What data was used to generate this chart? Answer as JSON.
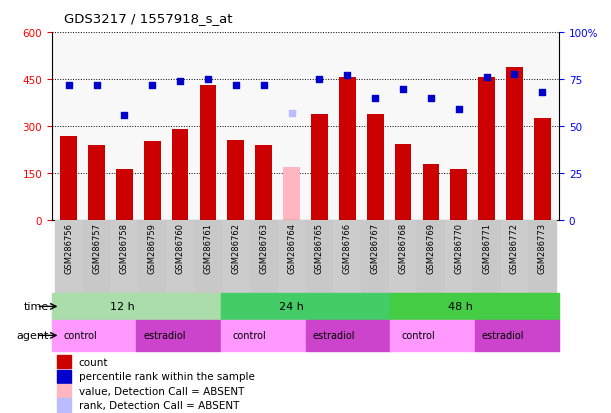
{
  "title": "GDS3217 / 1557918_s_at",
  "samples": [
    "GSM286756",
    "GSM286757",
    "GSM286758",
    "GSM286759",
    "GSM286760",
    "GSM286761",
    "GSM286762",
    "GSM286763",
    "GSM286764",
    "GSM286765",
    "GSM286766",
    "GSM286767",
    "GSM286768",
    "GSM286769",
    "GSM286770",
    "GSM286771",
    "GSM286772",
    "GSM286773"
  ],
  "counts": [
    270,
    240,
    163,
    252,
    292,
    432,
    255,
    242,
    170,
    340,
    458,
    338,
    245,
    180,
    165,
    458,
    488,
    328
  ],
  "absent_count_idx": [
    8
  ],
  "percentile_ranks": [
    72,
    72,
    56,
    72,
    74,
    75,
    72,
    72,
    57,
    75,
    77,
    65,
    70,
    65,
    59,
    76,
    78,
    68
  ],
  "absent_rank_idx": [
    8
  ],
  "ylim_left": [
    0,
    600
  ],
  "ylim_right": [
    0,
    100
  ],
  "yticks_left": [
    0,
    150,
    300,
    450,
    600
  ],
  "yticks_right": [
    0,
    25,
    50,
    75,
    100
  ],
  "bar_color_normal": "#CC0000",
  "bar_color_absent": "#FFB6C1",
  "dot_color_normal": "#0000CC",
  "dot_color_absent": "#BBBBFF",
  "bg_color": "#FFFFFF",
  "xlabel_bg": "#D0D0D0",
  "time_colors": {
    "12 h": "#AADDAA",
    "24 h": "#44CC66",
    "48 h": "#44CC44"
  },
  "agent_colors": {
    "control": "#FF99FF",
    "estradiol": "#CC44CC"
  },
  "time_groups": [
    {
      "label": "12 h",
      "start": 0,
      "end": 5
    },
    {
      "label": "24 h",
      "start": 6,
      "end": 11
    },
    {
      "label": "48 h",
      "start": 12,
      "end": 17
    }
  ],
  "agent_groups": [
    {
      "label": "control",
      "start": 0,
      "end": 2
    },
    {
      "label": "estradiol",
      "start": 3,
      "end": 5
    },
    {
      "label": "control",
      "start": 6,
      "end": 8
    },
    {
      "label": "estradiol",
      "start": 9,
      "end": 11
    },
    {
      "label": "control",
      "start": 12,
      "end": 14
    },
    {
      "label": "estradiol",
      "start": 15,
      "end": 17
    }
  ],
  "legend_items": [
    {
      "label": "count",
      "color": "#CC0000"
    },
    {
      "label": "percentile rank within the sample",
      "color": "#0000CC"
    },
    {
      "label": "value, Detection Call = ABSENT",
      "color": "#FFB6C1"
    },
    {
      "label": "rank, Detection Call = ABSENT",
      "color": "#BBBBFF"
    }
  ]
}
